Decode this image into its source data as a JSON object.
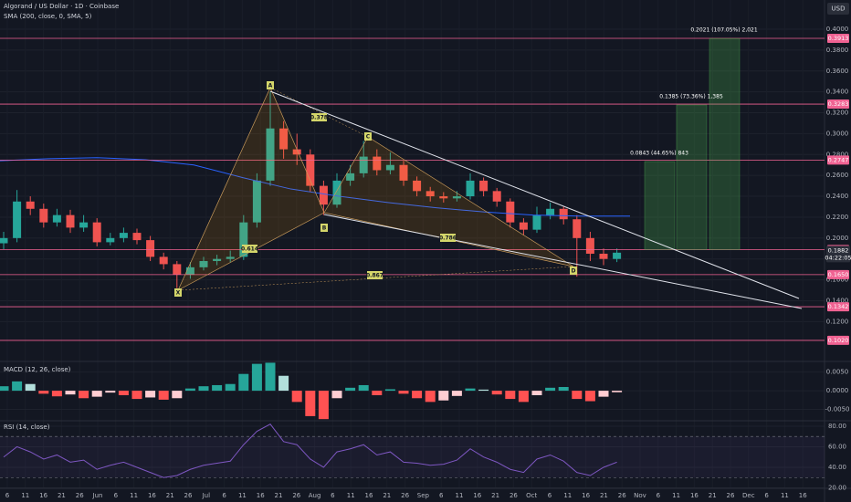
{
  "header": {
    "symbol": "Algorand / US Dollar · 1D · Coinbase",
    "indicator": "SMA (200, close, 0, SMA, 5)",
    "currency": "USD"
  },
  "chart_data": [
    {
      "type": "candlestick",
      "up_color": "#26a69a",
      "down_color": "#ef5350",
      "open": [
        0.195,
        0.2,
        0.235,
        0.228,
        0.215,
        0.222,
        0.21,
        0.215,
        0.196,
        0.2,
        0.205,
        0.198,
        0.182,
        0.175,
        0.165,
        0.172,
        0.178,
        0.18,
        0.182,
        0.215,
        0.255,
        0.305,
        0.285,
        0.28,
        0.25,
        0.232,
        0.255,
        0.262,
        0.278,
        0.265,
        0.27,
        0.255,
        0.245,
        0.24,
        0.238,
        0.24,
        0.255,
        0.245,
        0.235,
        0.215,
        0.208,
        0.222,
        0.228,
        0.218,
        0.2,
        0.185,
        0.18
      ],
      "high": [
        0.206,
        0.246,
        0.24,
        0.233,
        0.228,
        0.227,
        0.222,
        0.219,
        0.205,
        0.21,
        0.209,
        0.202,
        0.186,
        0.178,
        0.177,
        0.182,
        0.184,
        0.188,
        0.222,
        0.262,
        0.34,
        0.312,
        0.3,
        0.285,
        0.255,
        0.262,
        0.27,
        0.293,
        0.285,
        0.282,
        0.274,
        0.259,
        0.249,
        0.244,
        0.245,
        0.262,
        0.258,
        0.248,
        0.238,
        0.219,
        0.23,
        0.234,
        0.23,
        0.222,
        0.206,
        0.19,
        0.19
      ],
      "low": [
        0.189,
        0.196,
        0.222,
        0.21,
        0.211,
        0.205,
        0.206,
        0.192,
        0.193,
        0.196,
        0.194,
        0.178,
        0.17,
        0.152,
        0.161,
        0.169,
        0.174,
        0.177,
        0.179,
        0.21,
        0.25,
        0.276,
        0.27,
        0.244,
        0.222,
        0.229,
        0.25,
        0.258,
        0.26,
        0.261,
        0.25,
        0.24,
        0.235,
        0.234,
        0.235,
        0.237,
        0.24,
        0.23,
        0.21,
        0.203,
        0.205,
        0.218,
        0.213,
        0.163,
        0.178,
        0.174,
        0.177
      ],
      "close": [
        0.2,
        0.235,
        0.228,
        0.215,
        0.222,
        0.21,
        0.215,
        0.196,
        0.2,
        0.205,
        0.198,
        0.182,
        0.175,
        0.165,
        0.172,
        0.178,
        0.18,
        0.182,
        0.215,
        0.255,
        0.305,
        0.285,
        0.28,
        0.25,
        0.232,
        0.255,
        0.262,
        0.278,
        0.265,
        0.27,
        0.255,
        0.245,
        0.24,
        0.238,
        0.24,
        0.255,
        0.245,
        0.235,
        0.215,
        0.208,
        0.222,
        0.228,
        0.218,
        0.2,
        0.185,
        0.18,
        0.186
      ],
      "sma": {
        "color": "#2962ff",
        "values": [
          0.274,
          0.276,
          0.277,
          0.275,
          0.27,
          0.258,
          0.247,
          0.24,
          0.234,
          0.229,
          0.225,
          0.222,
          0.221,
          0.221
        ]
      },
      "levels": [
        0.3913,
        0.3283,
        0.2747,
        {
          "value": 0.189,
          "label": "0.1890"
        },
        {
          "value": 0.165,
          "label": "0.1650"
        },
        0.1342,
        {
          "value": 0.102,
          "label": "0.1020"
        }
      ],
      "level_color": "#f06292",
      "current_price": {
        "value": 0.1882,
        "countdown": "04:22:05"
      },
      "targets": [
        {
          "value": 0.0843,
          "label": "0.0843 (44.65%) 843"
        },
        {
          "value": 0.1385,
          "label": "0.1385 (73.36%) 1,385"
        },
        {
          "value": 0.2021,
          "label": "0.2021 (107.05%) 2,021"
        }
      ],
      "pattern": {
        "points": [
          "X",
          "A",
          "B",
          "C",
          "D"
        ],
        "ratios": [
          "0.378",
          "0.614",
          "0.786",
          "0.867"
        ]
      },
      "ylim": [
        0.0827,
        0.428
      ],
      "yticks": [
        {
          "value": 0.12,
          "label": "0.1200"
        },
        {
          "value": 0.14,
          "label": "0.1400"
        },
        {
          "value": 0.16,
          "label": "0.1600"
        },
        {
          "value": 0.18,
          "label": "0.1800"
        },
        {
          "value": 0.2,
          "label": "0.2000"
        },
        {
          "value": 0.22,
          "label": "0.2200"
        },
        {
          "value": 0.24,
          "label": "0.2400"
        },
        {
          "value": 0.26,
          "label": "0.2600"
        },
        {
          "value": 0.28,
          "label": "0.2800"
        },
        {
          "value": 0.3,
          "label": "0.3000"
        },
        {
          "value": 0.32,
          "label": "0.3200"
        },
        {
          "value": 0.34,
          "label": "0.3400"
        },
        {
          "value": 0.36,
          "label": "0.3600"
        },
        {
          "value": 0.38,
          "label": "0.3800"
        },
        {
          "value": 0.4,
          "label": "0.4000"
        }
      ],
      "x_labels": [
        "6",
        "11",
        "16",
        "21",
        "26",
        "Jun",
        "6",
        "11",
        "16",
        "21",
        "26",
        "Jul",
        "6",
        "11",
        "16",
        "21",
        "26",
        "Aug",
        "6",
        "11",
        "16",
        "21",
        "26",
        "Sep",
        "6",
        "11",
        "16",
        "21",
        "26",
        "Oct",
        "6",
        "11",
        "16",
        "21",
        "26",
        "Nov",
        "6",
        "11",
        "16",
        "21",
        "26",
        "Dec",
        "6",
        "11",
        "16"
      ]
    },
    {
      "type": "bar",
      "title": "MACD (12, 26, close)",
      "up_color": "#26a69a",
      "up_fade_color": "#b2dfdb",
      "down_color": "#ff5252",
      "down_fade_color": "#ffcdd2",
      "values": [
        0.0012,
        0.0025,
        0.0018,
        -0.0008,
        -0.0015,
        -0.001,
        -0.002,
        -0.0016,
        -0.0005,
        -0.0012,
        -0.0022,
        -0.0018,
        -0.0024,
        -0.002,
        0.0006,
        0.0012,
        0.0015,
        0.0018,
        0.0045,
        0.0072,
        0.0075,
        0.004,
        -0.003,
        -0.0068,
        -0.0076,
        -0.002,
        0.0008,
        0.0015,
        -0.0012,
        0.0004,
        -0.0008,
        -0.002,
        -0.003,
        -0.0026,
        -0.0014,
        0.0006,
        0.0003,
        -0.001,
        -0.0022,
        -0.003,
        -0.0012,
        0.0008,
        0.001,
        -0.0022,
        -0.0028,
        -0.0016,
        -0.0004
      ],
      "ylim": [
        -0.0078,
        0.0076
      ],
      "yticks": [
        {
          "value": -0.005,
          "label": "-0.0050"
        },
        {
          "value": 0,
          "label": "0.0000"
        },
        {
          "value": 0.005,
          "label": "0.0050"
        }
      ]
    },
    {
      "type": "line",
      "title": "RSI (14, close)",
      "color": "#7e57c2",
      "values": [
        50,
        60,
        55,
        48,
        52,
        45,
        47,
        38,
        42,
        45,
        40,
        35,
        30,
        32,
        38,
        42,
        44,
        46,
        62,
        75,
        82,
        65,
        62,
        48,
        40,
        55,
        58,
        62,
        52,
        55,
        45,
        44,
        42,
        43,
        47,
        58,
        50,
        45,
        38,
        35,
        48,
        52,
        46,
        35,
        32,
        40,
        45
      ],
      "bands": [
        70,
        30
      ],
      "ylim": [
        20,
        84.4
      ],
      "yticks": [
        {
          "value": 20,
          "label": "20.00"
        },
        {
          "value": 40,
          "label": "40.00"
        },
        {
          "value": 60,
          "label": "60.00"
        },
        {
          "value": 80,
          "label": "80.00"
        }
      ]
    }
  ]
}
